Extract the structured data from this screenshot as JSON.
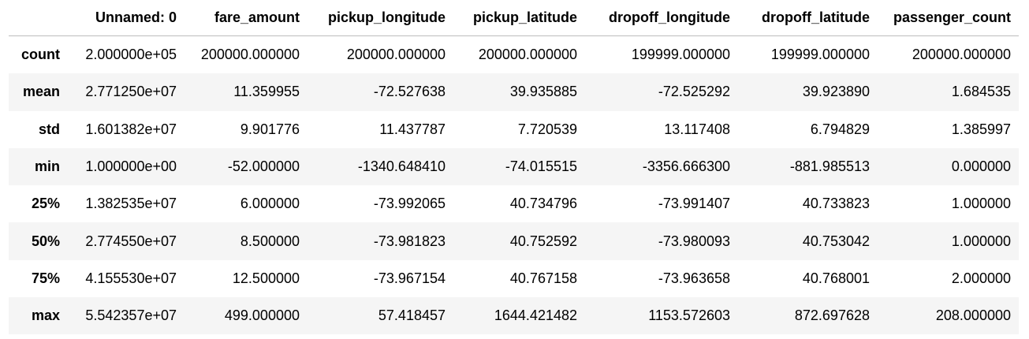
{
  "columns": [
    "",
    "Unnamed: 0",
    "fare_amount",
    "pickup_longitude",
    "pickup_latitude",
    "dropoff_longitude",
    "dropoff_latitude",
    "passenger_count"
  ],
  "rows": [
    {
      "index": "count",
      "values": [
        "2.000000e+05",
        "200000.000000",
        "200000.000000",
        "200000.000000",
        "199999.000000",
        "199999.000000",
        "200000.000000"
      ]
    },
    {
      "index": "mean",
      "values": [
        "2.771250e+07",
        "11.359955",
        "-72.527638",
        "39.935885",
        "-72.525292",
        "39.923890",
        "1.684535"
      ]
    },
    {
      "index": "std",
      "values": [
        "1.601382e+07",
        "9.901776",
        "11.437787",
        "7.720539",
        "13.117408",
        "6.794829",
        "1.385997"
      ]
    },
    {
      "index": "min",
      "values": [
        "1.000000e+00",
        "-52.000000",
        "-1340.648410",
        "-74.015515",
        "-3356.666300",
        "-881.985513",
        "0.000000"
      ]
    },
    {
      "index": "25%",
      "values": [
        "1.382535e+07",
        "6.000000",
        "-73.992065",
        "40.734796",
        "-73.991407",
        "40.733823",
        "1.000000"
      ]
    },
    {
      "index": "50%",
      "values": [
        "2.774550e+07",
        "8.500000",
        "-73.981823",
        "40.752592",
        "-73.980093",
        "40.753042",
        "1.000000"
      ]
    },
    {
      "index": "75%",
      "values": [
        "4.155530e+07",
        "12.500000",
        "-73.967154",
        "40.767158",
        "-73.963658",
        "40.768001",
        "2.000000"
      ]
    },
    {
      "index": "max",
      "values": [
        "5.542357e+07",
        "499.000000",
        "57.418457",
        "1644.421482",
        "1153.572603",
        "872.697628",
        "208.000000"
      ]
    }
  ],
  "colors": {
    "header_border": "#bdbdbd",
    "stripe": "#f5f5f5",
    "background": "#ffffff"
  }
}
